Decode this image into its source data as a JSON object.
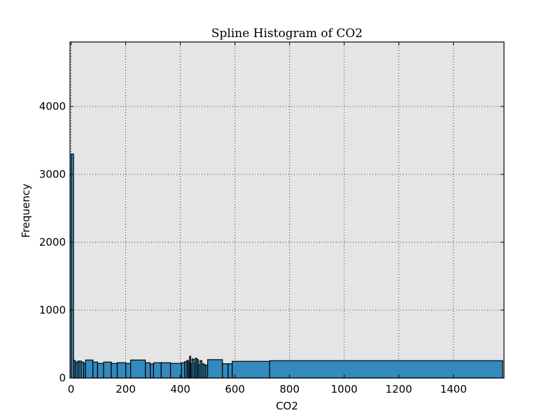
{
  "chart_data": {
    "type": "bar",
    "title": "Spline Histogram of CO2",
    "xlabel": "CO2",
    "ylabel": "Frequency",
    "xlim": [
      -4,
      1585
    ],
    "ylim": [
      0,
      4950
    ],
    "x_ticks": [
      0,
      200,
      400,
      600,
      800,
      1000,
      1200,
      1400
    ],
    "y_ticks": [
      0,
      1000,
      2000,
      3000,
      4000
    ],
    "grid": true,
    "background_color": "#e5e5e5",
    "bar_color": "#348abd",
    "bins": [
      {
        "x0": 0,
        "x1": 9,
        "value": 3300
      },
      {
        "x0": 9,
        "x1": 15,
        "value": 260
      },
      {
        "x0": 15,
        "x1": 22,
        "value": 230
      },
      {
        "x0": 22,
        "x1": 29,
        "value": 245
      },
      {
        "x0": 29,
        "x1": 37,
        "value": 250
      },
      {
        "x0": 37,
        "x1": 46,
        "value": 235
      },
      {
        "x0": 46,
        "x1": 53,
        "value": 215
      },
      {
        "x0": 53,
        "x1": 80,
        "value": 265
      },
      {
        "x0": 80,
        "x1": 97,
        "value": 235
      },
      {
        "x0": 97,
        "x1": 119,
        "value": 215
      },
      {
        "x0": 119,
        "x1": 147,
        "value": 235
      },
      {
        "x0": 147,
        "x1": 169,
        "value": 215
      },
      {
        "x0": 169,
        "x1": 200,
        "value": 225
      },
      {
        "x0": 200,
        "x1": 218,
        "value": 215
      },
      {
        "x0": 218,
        "x1": 272,
        "value": 265
      },
      {
        "x0": 272,
        "x1": 290,
        "value": 225
      },
      {
        "x0": 290,
        "x1": 302,
        "value": 205
      },
      {
        "x0": 302,
        "x1": 330,
        "value": 225
      },
      {
        "x0": 330,
        "x1": 364,
        "value": 225
      },
      {
        "x0": 364,
        "x1": 404,
        "value": 215
      },
      {
        "x0": 404,
        "x1": 416,
        "value": 225
      },
      {
        "x0": 416,
        "x1": 424,
        "value": 240
      },
      {
        "x0": 424,
        "x1": 429,
        "value": 260
      },
      {
        "x0": 429,
        "x1": 434,
        "value": 225
      },
      {
        "x0": 434,
        "x1": 438,
        "value": 320
      },
      {
        "x0": 438,
        "x1": 443,
        "value": 205
      },
      {
        "x0": 443,
        "x1": 450,
        "value": 280
      },
      {
        "x0": 450,
        "x1": 455,
        "value": 210
      },
      {
        "x0": 455,
        "x1": 461,
        "value": 290
      },
      {
        "x0": 461,
        "x1": 466,
        "value": 270
      },
      {
        "x0": 466,
        "x1": 472,
        "value": 195
      },
      {
        "x0": 472,
        "x1": 479,
        "value": 255
      },
      {
        "x0": 479,
        "x1": 486,
        "value": 210
      },
      {
        "x0": 486,
        "x1": 493,
        "value": 195
      },
      {
        "x0": 493,
        "x1": 500,
        "value": 190
      },
      {
        "x0": 500,
        "x1": 554,
        "value": 270
      },
      {
        "x0": 554,
        "x1": 575,
        "value": 210
      },
      {
        "x0": 575,
        "x1": 590,
        "value": 210
      },
      {
        "x0": 590,
        "x1": 727,
        "value": 245
      },
      {
        "x0": 727,
        "x1": 1580,
        "value": 255
      }
    ]
  }
}
